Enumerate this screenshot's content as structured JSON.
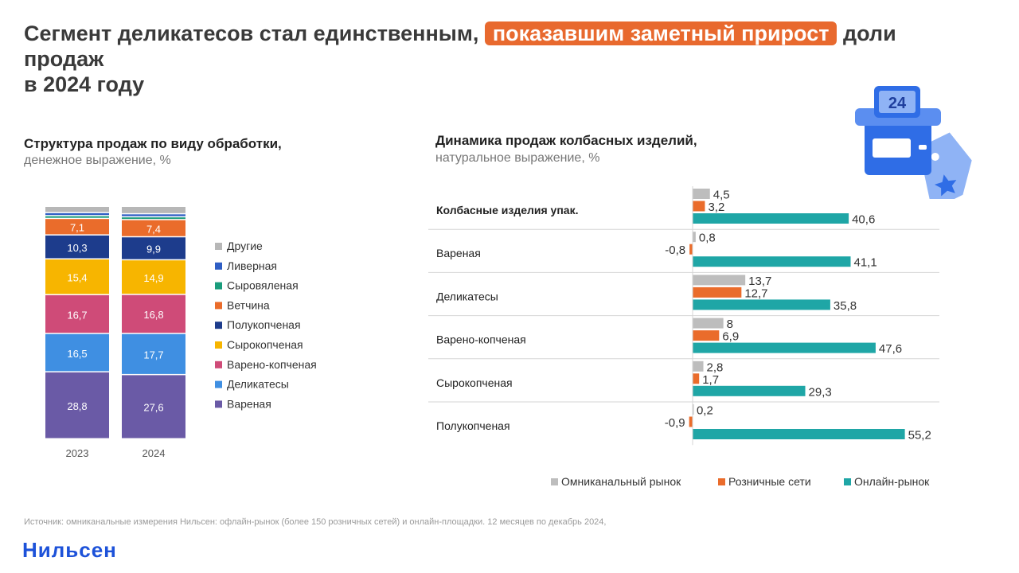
{
  "title": {
    "part1": "Сегмент деликатесов стал единственным,",
    "highlight": "показавшим заметный прирост",
    "part2": "доли продаж",
    "part3": "в 2024 году"
  },
  "left_chart_title": "Структура продаж по виду обработки,",
  "left_chart_subtitle": "денежное выражение, %",
  "right_chart_title": "Динамика продаж колбасных изделий,",
  "right_chart_subtitle": "натуральное выражение, %",
  "footnote": "Источник: омниканальные измерения Нильсен: офлайн-рынок (более 150 розничных сетей) и онлайн-площадки. 12 месяцев по декабрь 2024,",
  "brand": "Нильсен",
  "illustration": {
    "calendar_label": "24",
    "icon": "calendar-store-tag-icon"
  },
  "chart_data": [
    {
      "type": "bar",
      "stacked": true,
      "unit": "%",
      "categories": [
        "2023",
        "2024"
      ],
      "series": [
        {
          "name": "Вареная",
          "color": "#6a5aa6",
          "values": [
            28.8,
            27.6
          ]
        },
        {
          "name": "Деликатесы",
          "color": "#3f8fe2",
          "values": [
            16.5,
            17.7
          ]
        },
        {
          "name": "Варено-копченая",
          "color": "#cf4b78",
          "values": [
            16.7,
            16.8
          ]
        },
        {
          "name": "Сырокопченая",
          "color": "#f7b500",
          "values": [
            15.4,
            14.9
          ]
        },
        {
          "name": "Полукопченая",
          "color": "#1d3c8c",
          "values": [
            10.3,
            9.9
          ]
        },
        {
          "name": "Ветчина",
          "color": "#ea6c2b",
          "values": [
            7.1,
            7.4
          ]
        },
        {
          "name": "Сыровяленая",
          "color": "#1a9c7c",
          "values": [
            1.2,
            1.2
          ]
        },
        {
          "name": "Ливерная",
          "color": "#2f5ec4",
          "values": [
            1.3,
            1.3
          ]
        },
        {
          "name": "Другие",
          "color": "#b7b7b7",
          "values": [
            2.7,
            3.2
          ]
        }
      ],
      "labeled_series": [
        "Вареная",
        "Деликатесы",
        "Варено-копченая",
        "Сырокопченая",
        "Полукопченая",
        "Ветчина"
      ],
      "legend_order": [
        "Другие",
        "Ливерная",
        "Сыровяленая",
        "Ветчина",
        "Полукопченая",
        "Сырокопченая",
        "Варено-копченая",
        "Деликатесы",
        "Вареная"
      ],
      "legend_position": "right"
    },
    {
      "type": "bar",
      "orientation": "horizontal",
      "unit": "%",
      "categories": [
        "Колбасные изделия упак.",
        "Вареная",
        "Деликатесы",
        "Варено-копченая",
        "Сырокопченая",
        "Полукопченая"
      ],
      "bold_categories": [
        "Колбасные изделия упак."
      ],
      "series": [
        {
          "name": "Омниканальный рынок",
          "color": "#bdbdbd",
          "values": [
            4.5,
            0.8,
            13.7,
            8,
            2.8,
            0.2
          ],
          "labels": [
            "4,5",
            "0,8",
            "13,7",
            "8",
            "2,8",
            "0,2"
          ]
        },
        {
          "name": "Розничные сети",
          "color": "#ea6c2b",
          "values": [
            3.2,
            -0.8,
            12.7,
            6.9,
            1.7,
            -0.9
          ],
          "labels": [
            "3,2",
            "-0,8",
            "12,7",
            "6,9",
            "1,7",
            "-0,9"
          ]
        },
        {
          "name": "Онлайн-рынок",
          "color": "#1fa6a6",
          "values": [
            40.6,
            41.1,
            35.8,
            47.6,
            29.3,
            55.2
          ],
          "labels": [
            "40,6",
            "41,1",
            "35,8",
            "47,6",
            "29,3",
            "55,2"
          ]
        }
      ],
      "legend_position": "bottom"
    }
  ]
}
